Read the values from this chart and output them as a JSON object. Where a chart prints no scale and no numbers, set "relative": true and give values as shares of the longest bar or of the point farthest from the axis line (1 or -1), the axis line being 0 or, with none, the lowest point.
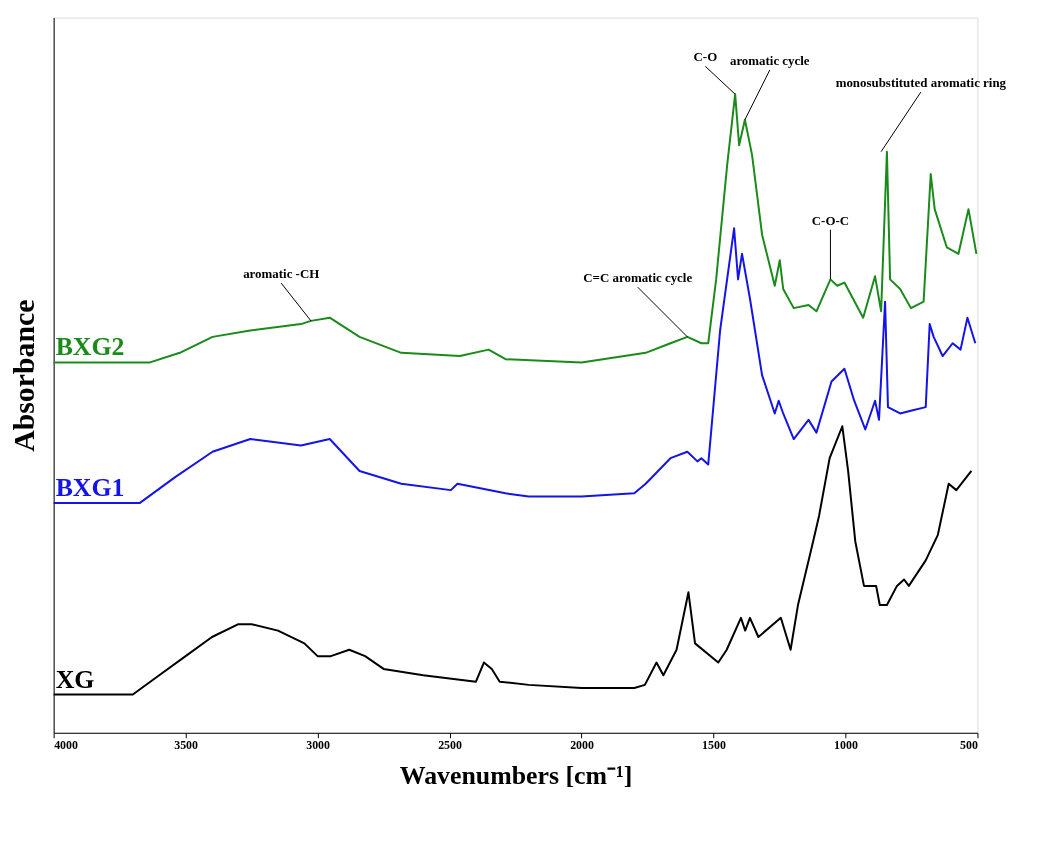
{
  "chart_data": {
    "type": "line",
    "relative": true,
    "xlabel": "Wavenumbers [cm⁻¹]",
    "ylabel": "Absorbance",
    "xlim": [
      4000,
      500
    ],
    "xticks": [
      4000,
      3500,
      3000,
      2500,
      2000,
      1500,
      1000,
      500
    ],
    "grid": false,
    "legend": false,
    "marker": "none",
    "line_style": "solid",
    "series": [
      {
        "name": "BXG2",
        "color": "#1a8a1a",
        "x": [
          4000,
          3635,
          3522,
          3398,
          3255,
          3063,
          3025,
          2954,
          2841,
          2683,
          2461,
          2352,
          2288,
          2000,
          1757,
          1663,
          1599,
          1546,
          1520,
          1490,
          1448,
          1418,
          1403,
          1381,
          1354,
          1316,
          1268,
          1249,
          1236,
          1196,
          1140,
          1110,
          1057,
          1031,
          1004,
          933,
          888,
          865,
          843,
          831,
          793,
          752,
          704,
          677,
          662,
          616,
          572,
          534,
          504
        ],
        "values": [
          0.58,
          0.58,
          0.595,
          0.62,
          0.63,
          0.64,
          0.645,
          0.65,
          0.62,
          0.595,
          0.59,
          0.6,
          0.585,
          0.58,
          0.595,
          0.61,
          0.62,
          0.61,
          0.61,
          0.71,
          0.89,
          1.0,
          0.92,
          0.96,
          0.905,
          0.78,
          0.7,
          0.74,
          0.695,
          0.665,
          0.67,
          0.66,
          0.71,
          0.7,
          0.705,
          0.65,
          0.715,
          0.66,
          0.91,
          0.71,
          0.695,
          0.665,
          0.675,
          0.875,
          0.82,
          0.76,
          0.75,
          0.82,
          0.75
        ]
      },
      {
        "name": "BXG1",
        "color": "#1414e6",
        "x": [
          4000,
          3673,
          3541,
          3398,
          3255,
          3063,
          2954,
          2841,
          2683,
          2495,
          2470,
          2288,
          2200,
          2000,
          1800,
          1757,
          1663,
          1599,
          1561,
          1546,
          1520,
          1475,
          1422,
          1407,
          1392,
          1362,
          1316,
          1268,
          1253,
          1236,
          1196,
          1140,
          1110,
          1053,
          1004,
          967,
          925,
          888,
          873,
          850,
          839,
          793,
          745,
          696,
          681,
          666,
          632,
          594,
          564,
          538,
          508
        ],
        "values": [
          0.36,
          0.36,
          0.4,
          0.44,
          0.46,
          0.45,
          0.46,
          0.41,
          0.39,
          0.38,
          0.39,
          0.375,
          0.37,
          0.37,
          0.375,
          0.39,
          0.43,
          0.44,
          0.425,
          0.43,
          0.42,
          0.63,
          0.79,
          0.71,
          0.75,
          0.68,
          0.56,
          0.5,
          0.52,
          0.5,
          0.46,
          0.49,
          0.47,
          0.55,
          0.57,
          0.52,
          0.475,
          0.52,
          0.49,
          0.675,
          0.51,
          0.5,
          0.505,
          0.51,
          0.64,
          0.62,
          0.59,
          0.61,
          0.6,
          0.65,
          0.61
        ]
      },
      {
        "name": "XG",
        "color": "#000000",
        "x": [
          4000,
          3700,
          3600,
          3500,
          3400,
          3300,
          3250,
          3150,
          3050,
          3000,
          2950,
          2880,
          2820,
          2750,
          2600,
          2400,
          2370,
          2340,
          2310,
          2200,
          2000,
          1800,
          1760,
          1716,
          1690,
          1640,
          1595,
          1570,
          1482,
          1450,
          1396,
          1380,
          1362,
          1330,
          1245,
          1208,
          1180,
          1128,
          1100,
          1060,
          1012,
          990,
          963,
          930,
          884,
          870,
          843,
          805,
          778,
          760,
          696,
          650,
          609,
          580,
          523
        ],
        "values": [
          0.06,
          0.06,
          0.09,
          0.12,
          0.15,
          0.17,
          0.17,
          0.16,
          0.14,
          0.12,
          0.12,
          0.13,
          0.12,
          0.1,
          0.09,
          0.08,
          0.11,
          0.1,
          0.08,
          0.075,
          0.07,
          0.07,
          0.075,
          0.11,
          0.09,
          0.13,
          0.22,
          0.14,
          0.11,
          0.13,
          0.18,
          0.16,
          0.18,
          0.15,
          0.18,
          0.13,
          0.2,
          0.29,
          0.34,
          0.43,
          0.48,
          0.41,
          0.3,
          0.23,
          0.23,
          0.2,
          0.2,
          0.23,
          0.24,
          0.23,
          0.27,
          0.31,
          0.39,
          0.38,
          0.41
        ]
      }
    ],
    "annotations": [
      {
        "text": "aromatic -CH",
        "x": 3025,
        "y": 0.645
      },
      {
        "text": "C=C aromatic cycle",
        "x": 1599,
        "y": 0.62
      },
      {
        "text": "C-O",
        "x": 1418,
        "y": 1.0
      },
      {
        "text": "aromatic cycle",
        "x": 1381,
        "y": 0.96
      },
      {
        "text": "C-O-C",
        "x": 1057,
        "y": 0.71
      },
      {
        "text": "monosubstituted aromatic ring",
        "x": 865,
        "y": 0.91
      }
    ]
  }
}
